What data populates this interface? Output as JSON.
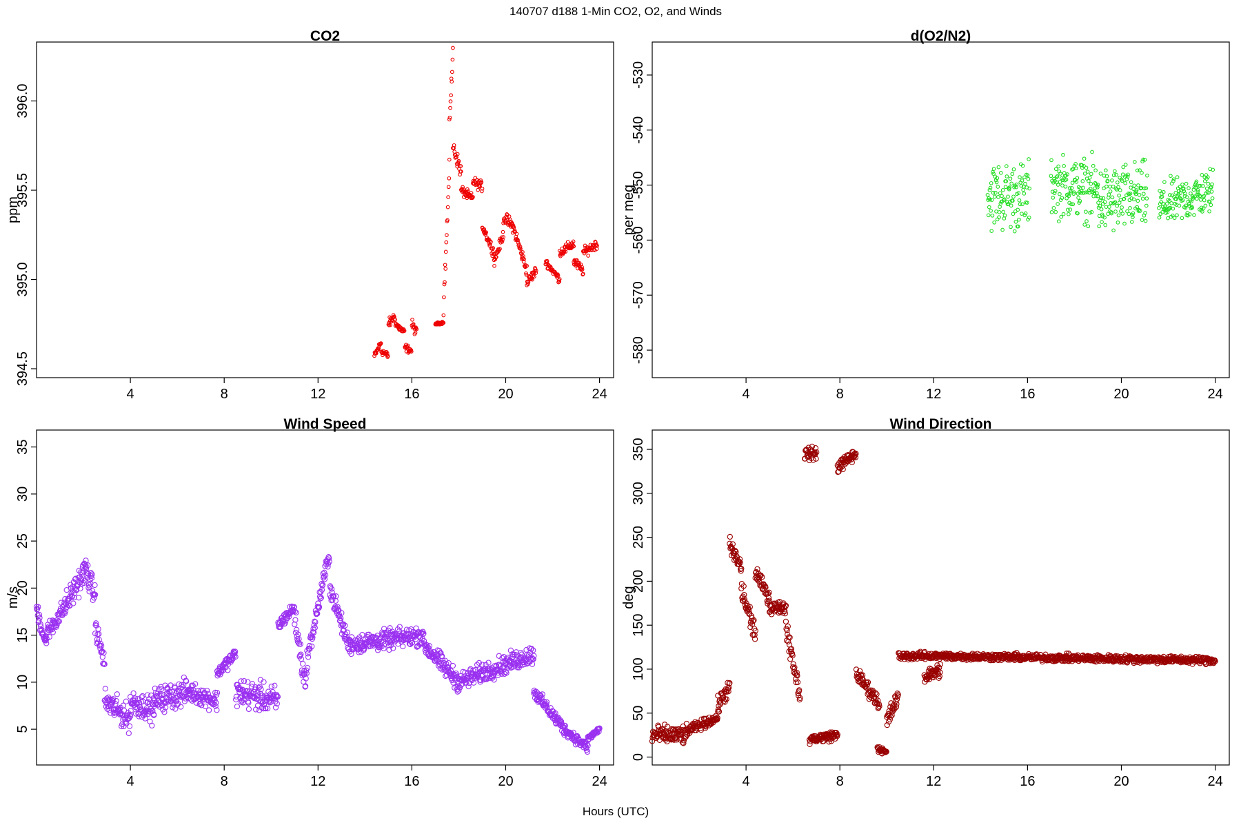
{
  "figure": {
    "suptitle": "140707   d188   1-Min CO2, O2, and Winds",
    "xlabel": "Hours (UTC)"
  },
  "chart_data": [
    {
      "id": "co2",
      "type": "scatter",
      "title": "CO2",
      "xlabel": "",
      "ylabel": "ppm",
      "xlim": [
        0,
        24.6
      ],
      "ylim": [
        394.45,
        396.33
      ],
      "xticks": [
        4,
        8,
        12,
        16,
        20,
        24
      ],
      "yticks": [
        394.5,
        395.0,
        395.5,
        396.0
      ],
      "ytick_labels": [
        "394.5",
        "395.0",
        "395.5",
        "396.0"
      ],
      "color": "#ee0000",
      "marker_size": "small",
      "gen_points": true,
      "segments": [
        {
          "x0": 14.4,
          "x1": 14.7,
          "y0": 394.57,
          "y1": 394.65,
          "noise": 0.03
        },
        {
          "x0": 14.7,
          "x1": 15.0,
          "y0": 394.6,
          "y1": 394.57,
          "noise": 0.03
        },
        {
          "x0": 15.0,
          "x1": 15.3,
          "y0": 394.75,
          "y1": 394.8,
          "noise": 0.04
        },
        {
          "x0": 15.3,
          "x1": 15.7,
          "y0": 394.75,
          "y1": 394.7,
          "noise": 0.03
        },
        {
          "x0": 15.7,
          "x1": 16.0,
          "y0": 394.62,
          "y1": 394.6,
          "noise": 0.03
        },
        {
          "x0": 16.0,
          "x1": 16.2,
          "y0": 394.75,
          "y1": 394.7,
          "noise": 0.04
        },
        {
          "x0": 17.0,
          "x1": 17.35,
          "y0": 394.75,
          "y1": 394.76,
          "noise": 0.01
        },
        {
          "x0": 17.35,
          "x1": 17.6,
          "y0": 394.85,
          "y1": 395.6,
          "noise": 0.08
        },
        {
          "x0": 17.6,
          "x1": 17.75,
          "y0": 395.9,
          "y1": 396.25,
          "noise": 0.08
        },
        {
          "x0": 17.75,
          "x1": 18.1,
          "y0": 395.75,
          "y1": 395.6,
          "noise": 0.06
        },
        {
          "x0": 18.1,
          "x1": 18.6,
          "y0": 395.5,
          "y1": 395.45,
          "noise": 0.04
        },
        {
          "x0": 18.6,
          "x1": 19.0,
          "y0": 395.55,
          "y1": 395.52,
          "noise": 0.04
        },
        {
          "x0": 19.0,
          "x1": 19.5,
          "y0": 395.3,
          "y1": 395.15,
          "noise": 0.04
        },
        {
          "x0": 19.5,
          "x1": 19.9,
          "y0": 395.1,
          "y1": 395.25,
          "noise": 0.04
        },
        {
          "x0": 19.9,
          "x1": 20.3,
          "y0": 395.35,
          "y1": 395.3,
          "noise": 0.05
        },
        {
          "x0": 20.3,
          "x1": 20.9,
          "y0": 395.3,
          "y1": 395.05,
          "noise": 0.05
        },
        {
          "x0": 20.9,
          "x1": 21.3,
          "y0": 394.98,
          "y1": 395.05,
          "noise": 0.04
        },
        {
          "x0": 21.7,
          "x1": 22.3,
          "y0": 395.1,
          "y1": 395.0,
          "noise": 0.03
        },
        {
          "x0": 22.3,
          "x1": 22.9,
          "y0": 395.15,
          "y1": 395.2,
          "noise": 0.04
        },
        {
          "x0": 22.9,
          "x1": 23.3,
          "y0": 395.1,
          "y1": 395.05,
          "noise": 0.04
        },
        {
          "x0": 23.3,
          "x1": 23.9,
          "y0": 395.15,
          "y1": 395.2,
          "noise": 0.04
        }
      ]
    },
    {
      "id": "o2",
      "type": "scatter",
      "title": "d(O2/N2)",
      "xlabel": "",
      "ylabel": "per meg",
      "xlim": [
        0,
        24.6
      ],
      "ylim": [
        -585,
        -524
      ],
      "xticks": [
        4,
        8,
        12,
        16,
        20,
        24
      ],
      "yticks": [
        -580,
        -570,
        -560,
        -550,
        -540,
        -530
      ],
      "ytick_labels": [
        "-580",
        "-570",
        "-560",
        "-550",
        "-540",
        "-530"
      ],
      "color": "#22dd22",
      "marker_size": "small",
      "gen_points": true,
      "segments": [
        {
          "x0": 14.3,
          "x1": 16.1,
          "y0": -552,
          "y1": -552,
          "noise": 9
        },
        {
          "x0": 17.0,
          "x1": 19.0,
          "y0": -550,
          "y1": -551,
          "noise": 8
        },
        {
          "x0": 19.0,
          "x1": 21.1,
          "y0": -553,
          "y1": -552,
          "noise": 9
        },
        {
          "x0": 21.6,
          "x1": 23.9,
          "y0": -554,
          "y1": -551,
          "noise": 6
        }
      ]
    },
    {
      "id": "ws",
      "type": "scatter",
      "title": "Wind Speed",
      "xlabel": "",
      "ylabel": "m/s",
      "xlim": [
        0,
        24.6
      ],
      "ylim": [
        1.2,
        36.8
      ],
      "xticks": [
        4,
        8,
        12,
        16,
        20,
        24
      ],
      "yticks": [
        5,
        10,
        15,
        20,
        25,
        30,
        35
      ],
      "ytick_labels": [
        "5",
        "10",
        "15",
        "20",
        "25",
        "30",
        "35"
      ],
      "color": "#9a30f0",
      "marker_size": "large",
      "gen_points": true,
      "segments": [
        {
          "x0": 0.0,
          "x1": 0.4,
          "y0": 18,
          "y1": 14,
          "noise": 1.5
        },
        {
          "x0": 0.4,
          "x1": 1.2,
          "y0": 15,
          "y1": 18,
          "noise": 1.5
        },
        {
          "x0": 1.2,
          "x1": 2.1,
          "y0": 18,
          "y1": 22,
          "noise": 2
        },
        {
          "x0": 2.1,
          "x1": 2.5,
          "y0": 22,
          "y1": 19,
          "noise": 2
        },
        {
          "x0": 2.5,
          "x1": 2.9,
          "y0": 16,
          "y1": 12,
          "noise": 1.5
        },
        {
          "x0": 2.9,
          "x1": 4.0,
          "y0": 8,
          "y1": 6,
          "noise": 2
        },
        {
          "x0": 4.0,
          "x1": 5.0,
          "y0": 8,
          "y1": 7,
          "noise": 2
        },
        {
          "x0": 5.0,
          "x1": 6.5,
          "y0": 8,
          "y1": 9,
          "noise": 2
        },
        {
          "x0": 6.5,
          "x1": 7.7,
          "y0": 9,
          "y1": 8,
          "noise": 1.5
        },
        {
          "x0": 7.7,
          "x1": 8.5,
          "y0": 11,
          "y1": 13,
          "noise": 1
        },
        {
          "x0": 8.5,
          "x1": 10.3,
          "y0": 9,
          "y1": 8,
          "noise": 2.2
        },
        {
          "x0": 10.3,
          "x1": 11.0,
          "y0": 16,
          "y1": 18,
          "noise": 1
        },
        {
          "x0": 11.0,
          "x1": 11.5,
          "y0": 17,
          "y1": 9,
          "noise": 2
        },
        {
          "x0": 11.5,
          "x1": 12.5,
          "y0": 12,
          "y1": 24,
          "noise": 1.5
        },
        {
          "x0": 12.5,
          "x1": 13.3,
          "y0": 20,
          "y1": 14,
          "noise": 1.5
        },
        {
          "x0": 13.3,
          "x1": 16.5,
          "y0": 14,
          "y1": 15,
          "noise": 1.5
        },
        {
          "x0": 16.5,
          "x1": 18.0,
          "y0": 14,
          "y1": 10,
          "noise": 1.5
        },
        {
          "x0": 18.0,
          "x1": 19.0,
          "y0": 10,
          "y1": 11,
          "noise": 1.5
        },
        {
          "x0": 19.0,
          "x1": 21.2,
          "y0": 11,
          "y1": 13,
          "noise": 1.5
        },
        {
          "x0": 21.2,
          "x1": 22.5,
          "y0": 9,
          "y1": 5,
          "noise": 1
        },
        {
          "x0": 22.5,
          "x1": 23.5,
          "y0": 5,
          "y1": 3,
          "noise": 0.8
        },
        {
          "x0": 23.5,
          "x1": 24.0,
          "y0": 4,
          "y1": 5,
          "noise": 0.5
        }
      ]
    },
    {
      "id": "wd",
      "type": "scatter",
      "title": "Wind Direction",
      "xlabel": "",
      "ylabel": "deg",
      "xlim": [
        0,
        24.6
      ],
      "ylim": [
        -9,
        372
      ],
      "xticks": [
        4,
        8,
        12,
        16,
        20,
        24
      ],
      "yticks": [
        0,
        50,
        100,
        150,
        200,
        250,
        300,
        350
      ],
      "ytick_labels": [
        "0",
        "50",
        "100",
        "150",
        "200",
        "250",
        "300",
        "350"
      ],
      "color": "#990000",
      "marker_size": "large",
      "gen_points": true,
      "segments": [
        {
          "x0": 0.0,
          "x1": 1.5,
          "y0": 25,
          "y1": 25,
          "noise": 15
        },
        {
          "x0": 1.5,
          "x1": 2.8,
          "y0": 30,
          "y1": 45,
          "noise": 8
        },
        {
          "x0": 2.8,
          "x1": 3.3,
          "y0": 60,
          "y1": 80,
          "noise": 15
        },
        {
          "x0": 3.3,
          "x1": 3.8,
          "y0": 240,
          "y1": 215,
          "noise": 15
        },
        {
          "x0": 3.8,
          "x1": 4.4,
          "y0": 190,
          "y1": 140,
          "noise": 20
        },
        {
          "x0": 4.4,
          "x1": 5.0,
          "y0": 210,
          "y1": 180,
          "noise": 12
        },
        {
          "x0": 5.0,
          "x1": 5.7,
          "y0": 170,
          "y1": 170,
          "noise": 10
        },
        {
          "x0": 5.7,
          "x1": 6.3,
          "y0": 150,
          "y1": 70,
          "noise": 20
        },
        {
          "x0": 6.5,
          "x1": 7.0,
          "y0": 345,
          "y1": 345,
          "noise": 10
        },
        {
          "x0": 6.7,
          "x1": 7.9,
          "y0": 20,
          "y1": 25,
          "noise": 8
        },
        {
          "x0": 7.9,
          "x1": 8.7,
          "y0": 330,
          "y1": 345,
          "noise": 10
        },
        {
          "x0": 8.7,
          "x1": 9.7,
          "y0": 95,
          "y1": 60,
          "noise": 12
        },
        {
          "x0": 9.6,
          "x1": 10.0,
          "y0": 10,
          "y1": 5,
          "noise": 5
        },
        {
          "x0": 10.0,
          "x1": 10.5,
          "y0": 40,
          "y1": 70,
          "noise": 15
        },
        {
          "x0": 10.5,
          "x1": 12.0,
          "y0": 115,
          "y1": 115,
          "noise": 6
        },
        {
          "x0": 11.6,
          "x1": 12.3,
          "y0": 90,
          "y1": 100,
          "noise": 12
        },
        {
          "x0": 12.0,
          "x1": 24.0,
          "y0": 115,
          "y1": 110,
          "noise": 6
        }
      ]
    }
  ]
}
